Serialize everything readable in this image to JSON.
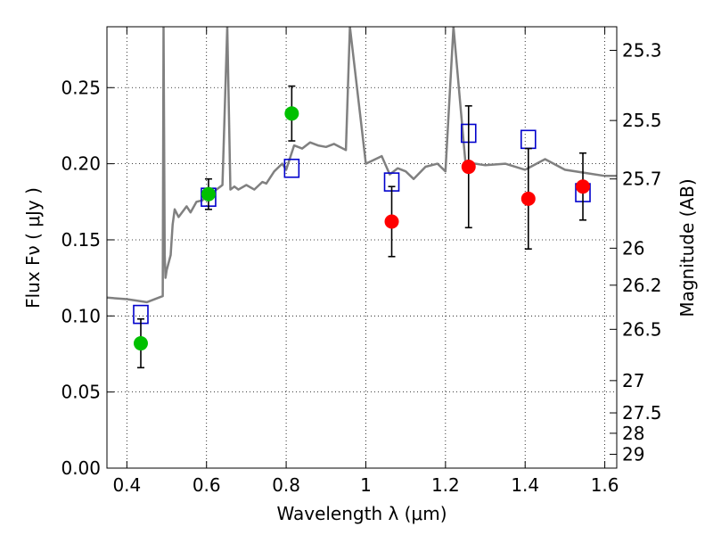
{
  "chart_data": {
    "type": "scatter",
    "xlabel": "Wavelength  λ (μm)",
    "ylabel": "Flux  Fν  ( μJy )",
    "y2label": "Magnitude (AB)",
    "xlim": [
      0.35,
      1.63
    ],
    "ylim": [
      0.0,
      0.29
    ],
    "grid": true,
    "x_ticks": [
      0.4,
      0.6,
      0.8,
      1.0,
      1.2,
      1.4,
      1.6
    ],
    "x_tick_labels": [
      "0.4",
      "0.6",
      "0.8",
      "1",
      "1.2",
      "1.4",
      "1.6"
    ],
    "y_ticks": [
      0.0,
      0.05,
      0.1,
      0.15,
      0.2,
      0.25
    ],
    "y_tick_labels": [
      "0.00",
      "0.05",
      "0.10",
      "0.15",
      "0.20",
      "0.25"
    ],
    "y2_ticks": [
      {
        "label": "25.3",
        "flux": 0.2745
      },
      {
        "label": "25.5",
        "flux": 0.2284
      },
      {
        "label": "25.7",
        "flux": 0.19
      },
      {
        "label": "26",
        "flux": 0.1445
      },
      {
        "label": "26.2",
        "flux": 0.1202
      },
      {
        "label": "26.5",
        "flux": 0.0912
      },
      {
        "label": "27",
        "flux": 0.0575
      },
      {
        "label": "27.5",
        "flux": 0.0363
      },
      {
        "label": "28",
        "flux": 0.0229
      },
      {
        "label": "29",
        "flux": 0.0091
      }
    ],
    "colors": {
      "model": "#808080",
      "green_points": "#00c000",
      "red_points": "#ff0000",
      "model_boxes": "#0000cc",
      "error_bars": "#000000"
    },
    "series": [
      {
        "x": [
          0.435,
          0.605,
          0.814
        ],
        "y": [
          0.082,
          0.18,
          0.233
        ],
        "yerr": [
          0.016,
          0.01,
          0.018
        ]
      },
      {
        "x": [
          1.065,
          1.258,
          1.408,
          1.545
        ],
        "y": [
          0.162,
          0.198,
          0.177,
          0.185
        ],
        "yerr": [
          0.023,
          0.04,
          0.033,
          0.022
        ]
      },
      {
        "x": [
          0.435,
          0.605,
          0.814,
          1.065,
          1.258,
          1.408,
          1.545
        ],
        "y": [
          0.101,
          0.178,
          0.197,
          0.188,
          0.22,
          0.216,
          0.181
        ]
      }
    ],
    "model_spectrum": {
      "x": [
        0.35,
        0.4,
        0.45,
        0.49,
        0.492,
        0.495,
        0.497,
        0.5,
        0.51,
        0.515,
        0.52,
        0.53,
        0.55,
        0.56,
        0.575,
        0.59,
        0.6,
        0.62,
        0.64,
        0.652,
        0.66,
        0.67,
        0.68,
        0.7,
        0.72,
        0.74,
        0.75,
        0.77,
        0.79,
        0.8,
        0.82,
        0.84,
        0.86,
        0.88,
        0.9,
        0.92,
        0.95,
        0.96,
        1.0,
        1.04,
        1.06,
        1.08,
        1.1,
        1.12,
        1.15,
        1.18,
        1.2,
        1.22,
        1.25,
        1.3,
        1.35,
        1.4,
        1.45,
        1.5,
        1.55,
        1.6,
        1.63
      ],
      "y": [
        0.112,
        0.111,
        0.109,
        0.113,
        0.29,
        0.14,
        0.125,
        0.13,
        0.14,
        0.16,
        0.17,
        0.165,
        0.172,
        0.168,
        0.175,
        0.176,
        0.18,
        0.182,
        0.186,
        0.29,
        0.183,
        0.185,
        0.183,
        0.186,
        0.183,
        0.188,
        0.187,
        0.195,
        0.2,
        0.196,
        0.212,
        0.21,
        0.214,
        0.212,
        0.211,
        0.213,
        0.209,
        0.29,
        0.2,
        0.205,
        0.193,
        0.197,
        0.195,
        0.19,
        0.198,
        0.2,
        0.195,
        0.29,
        0.201,
        0.199,
        0.2,
        0.196,
        0.203,
        0.196,
        0.194,
        0.192,
        0.192
      ]
    }
  }
}
